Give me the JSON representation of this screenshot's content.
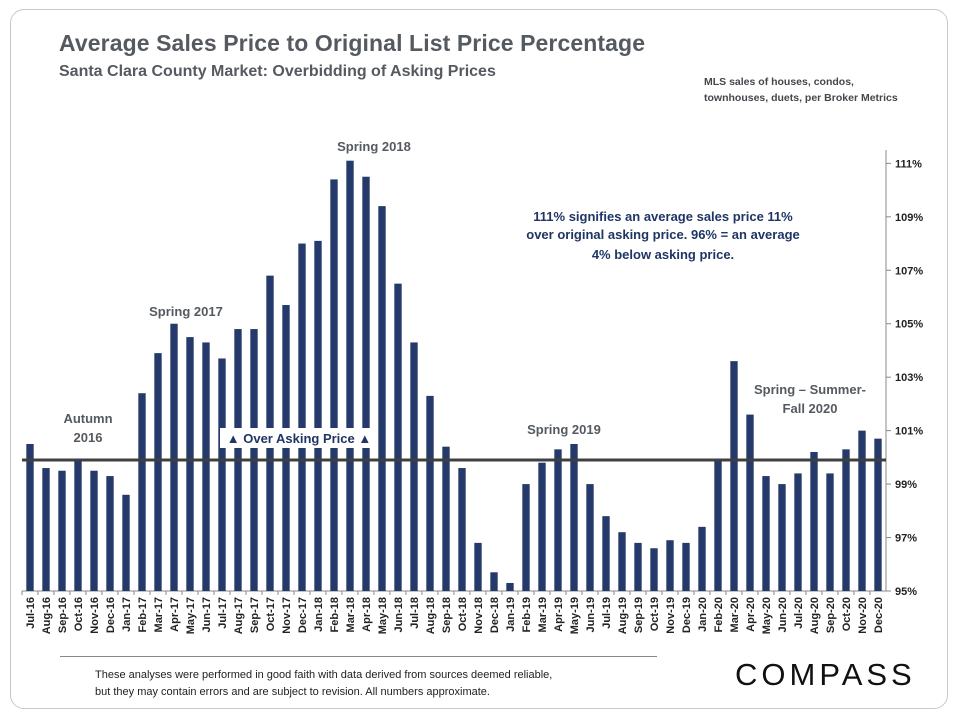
{
  "header": {
    "title": "Average Sales Price to Original List Price Percentage",
    "subtitle": "Santa Clara County Market: Overbidding  of Asking Prices",
    "source_line1": "MLS sales of houses,  condos,",
    "source_line2": "townhouses,  duets,  per Broker Metrics"
  },
  "footer": {
    "note_line1": "These analyses  were performed in good faith with data derived from sources deemed reliable,",
    "note_line2": "but they may contain errors and are subject to revision.  All numbers approximate.",
    "logo": "COMPASS"
  },
  "chart_data": {
    "type": "bar",
    "title": "Average Sales Price to Original List Price Percentage",
    "subtitle": "Santa Clara County Market: Overbidding  of Asking Prices",
    "categories": [
      "Jul-16",
      "Aug-16",
      "Sep-16",
      "Oct-16",
      "Nov-16",
      "Dec-16",
      "Jan-17",
      "Feb-17",
      "Mar-17",
      "Apr-17",
      "May-17",
      "Jun-17",
      "Jul-17",
      "Aug-17",
      "Sep-17",
      "Oct-17",
      "Nov-17",
      "Dec-17",
      "Jan-18",
      "Feb-18",
      "Mar-18",
      "Apr-18",
      "May-18",
      "Jun-18",
      "Jul-18",
      "Aug-18",
      "Sep-18",
      "Oct-18",
      "Nov-18",
      "Dec-18",
      "Jan-19",
      "Feb-19",
      "Mar-19",
      "Apr-19",
      "May-19",
      "Jun-19",
      "Jul-19",
      "Aug-19",
      "Sep-19",
      "Oct-19",
      "Nov-19",
      "Dec-19",
      "Jan-20",
      "Feb-20",
      "Mar-20",
      "Apr-20",
      "May-20",
      "Jun-20",
      "Jul-20",
      "Aug-20",
      "Sep-20",
      "Oct-20",
      "Nov-20",
      "Dec-20"
    ],
    "values": [
      100.5,
      99.6,
      99.5,
      99.9,
      99.5,
      99.3,
      98.6,
      102.4,
      103.9,
      105.0,
      104.5,
      104.3,
      103.7,
      104.8,
      104.8,
      106.8,
      105.7,
      108.0,
      108.1,
      110.4,
      111.1,
      110.5,
      109.4,
      106.5,
      104.3,
      102.3,
      100.4,
      99.6,
      96.8,
      95.7,
      95.3,
      99.0,
      99.8,
      100.3,
      100.5,
      99.0,
      97.8,
      97.2,
      96.8,
      96.6,
      96.9,
      96.8,
      97.4,
      99.9,
      103.6,
      101.6,
      99.3,
      99.0,
      99.4,
      100.2,
      99.4,
      100.3,
      101.0,
      100.7
    ],
    "y_axis": {
      "min": 95,
      "max": 111.5,
      "side": "right",
      "ticks": [
        95,
        97,
        99,
        101,
        103,
        105,
        107,
        109,
        111
      ],
      "tick_labels": [
        "95%",
        "97%",
        "99%",
        "101%",
        "103%",
        "105%",
        "107%",
        "109%",
        "111%"
      ]
    },
    "reference_line": {
      "value": 99.9,
      "color": "#404040"
    },
    "bar_color": "#253a6a",
    "grid": false,
    "legend": "none",
    "annotations": [
      {
        "text": "Spring 2018",
        "color": "#555a60"
      },
      {
        "text": "Spring 2017",
        "color": "#555a60"
      },
      {
        "text": "Autumn",
        "color": "#555a60"
      },
      {
        "text": "2016",
        "color": "#555a60"
      },
      {
        "text": "Spring 2019",
        "color": "#555a60"
      },
      {
        "text": "Spring – Summer-",
        "color": "#555a60"
      },
      {
        "text": "Fall 2020",
        "color": "#555a60"
      },
      {
        "text": "▲ Over Asking Price ▲",
        "color": "#1f3564"
      },
      {
        "text": "111% signifies an average sales price 11%",
        "color": "#1f3564"
      },
      {
        "text": "over original asking price. 96% = an average",
        "color": "#1f3564"
      },
      {
        "text": "4% below asking price.",
        "color": "#1f3564"
      }
    ]
  }
}
